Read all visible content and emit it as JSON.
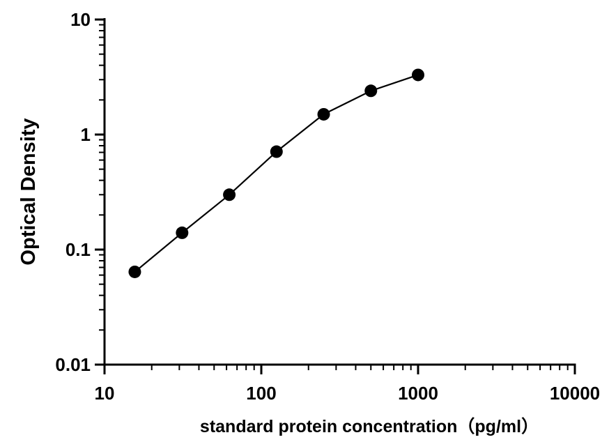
{
  "chart_data": {
    "type": "line",
    "title": "",
    "xlabel": "standard protein concentration（pg/ml）",
    "ylabel": "Optical Density",
    "x_scale": "log",
    "y_scale": "log",
    "xlim": [
      10,
      10000
    ],
    "ylim": [
      0.01,
      10
    ],
    "grid": false,
    "x_ticks": [
      10,
      100,
      1000,
      10000
    ],
    "x_tick_labels": [
      "10",
      "100",
      "1000",
      "10000"
    ],
    "y_ticks": [
      0.01,
      0.1,
      1,
      10
    ],
    "y_tick_labels": [
      "0.01",
      "0.1",
      "1",
      "10"
    ],
    "series": [
      {
        "x": [
          15.6,
          31.25,
          62.5,
          125,
          250,
          500,
          1000
        ],
        "y": [
          0.064,
          0.14,
          0.3,
          0.71,
          1.5,
          2.4,
          3.3
        ]
      }
    ],
    "colors": {
      "line": "#000000",
      "marker": "#000000"
    }
  }
}
